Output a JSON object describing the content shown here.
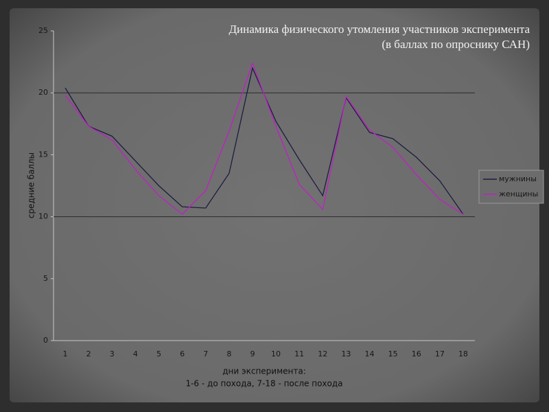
{
  "chart_data": {
    "type": "line",
    "title": "Динамика физического утомления участников эксперимента",
    "subtitle": "(в баллах по опроснику САН)",
    "ylabel": "средние баллы",
    "xlabel": [
      "дни эксперимента:",
      "1-6 - до похода, 7-18 - после похода"
    ],
    "categories": [
      "1",
      "2",
      "3",
      "4",
      "5",
      "6",
      "7",
      "8",
      "9",
      "10",
      "11",
      "12",
      "13",
      "14",
      "15",
      "16",
      "17",
      "18"
    ],
    "series": [
      {
        "name": "мужнины",
        "color": "#1c1c40",
        "values": [
          20.4,
          17.3,
          16.5,
          14.5,
          12.5,
          10.8,
          10.7,
          13.5,
          22.0,
          17.7,
          14.6,
          11.7,
          19.6,
          16.8,
          16.3,
          14.8,
          12.9,
          10.2
        ]
      },
      {
        "name": "женщины",
        "color": "#c21ec8",
        "values": [
          19.8,
          17.3,
          16.2,
          13.8,
          11.7,
          10.2,
          12.1,
          16.9,
          22.4,
          17.3,
          12.6,
          10.6,
          19.7,
          17.0,
          15.6,
          13.4,
          11.4,
          10.2
        ]
      }
    ],
    "ylim": [
      0,
      25
    ],
    "yticks": [
      0,
      5,
      10,
      15,
      20,
      25
    ],
    "grid_lines": [
      10,
      20
    ],
    "legend": "right"
  }
}
